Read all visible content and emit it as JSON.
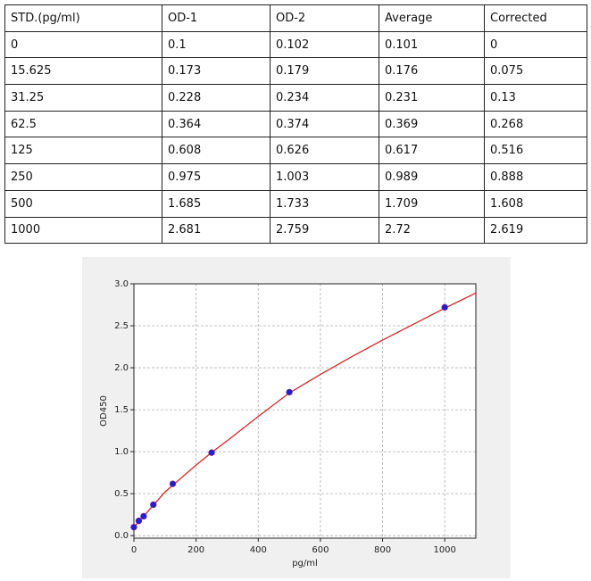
{
  "table": {
    "header": [
      "STD.(pg/ml)",
      "OD-1",
      "OD-2",
      "Average",
      "Corrected"
    ],
    "rows": [
      [
        "0",
        "0.1",
        "0.102",
        "0.101",
        "0"
      ],
      [
        "15.625",
        "0.173",
        "0.179",
        "0.176",
        "0.075"
      ],
      [
        "31.25",
        "0.228",
        "0.234",
        "0.231",
        "0.13"
      ],
      [
        "62.5",
        "0.364",
        "0.374",
        "0.369",
        "0.268"
      ],
      [
        "125",
        "0.608",
        "0.626",
        "0.617",
        "0.516"
      ],
      [
        "250",
        "0.975",
        "1.003",
        "0.989",
        "0.888"
      ],
      [
        "500",
        "1.685",
        "1.733",
        "1.709",
        "1.608"
      ],
      [
        "1000",
        "2.681",
        "2.759",
        "2.72",
        "2.619"
      ]
    ]
  },
  "chart_data": {
    "type": "scatter",
    "x_label": "pg/ml",
    "y_label": "OD450",
    "xlim": [
      0,
      1100
    ],
    "xticks": [
      0,
      200,
      400,
      600,
      800,
      1000
    ],
    "ylim": [
      -0.03,
      3.0
    ],
    "yticks": [
      {
        "value": 0,
        "label": "0.0"
      },
      {
        "value": 0.5,
        "label": "0.5"
      },
      {
        "value": 1,
        "label": "1.0"
      },
      {
        "value": 1.5,
        "label": "1.5"
      },
      {
        "value": 2,
        "label": "2.0"
      },
      {
        "value": 2.5,
        "label": "2.5"
      },
      {
        "value": 3,
        "label": "3.0"
      }
    ],
    "grid": true,
    "series": [
      {
        "type": "scatter",
        "color": "#1f1fd0",
        "x": [
          0,
          15.625,
          31.25,
          62.5,
          125,
          250,
          500,
          1000
        ],
        "y": [
          0.101,
          0.176,
          0.231,
          0.369,
          0.617,
          0.989,
          1.709,
          2.72
        ]
      },
      {
        "type": "line",
        "color": "#d62728",
        "x": [
          0,
          100,
          200,
          250,
          300,
          400,
          500,
          600,
          700,
          800,
          900,
          1000,
          1100
        ],
        "y": [
          0.1,
          0.52,
          0.84,
          0.99,
          1.13,
          1.42,
          1.7,
          1.92,
          2.13,
          2.33,
          2.52,
          2.71,
          2.89
        ]
      }
    ]
  }
}
